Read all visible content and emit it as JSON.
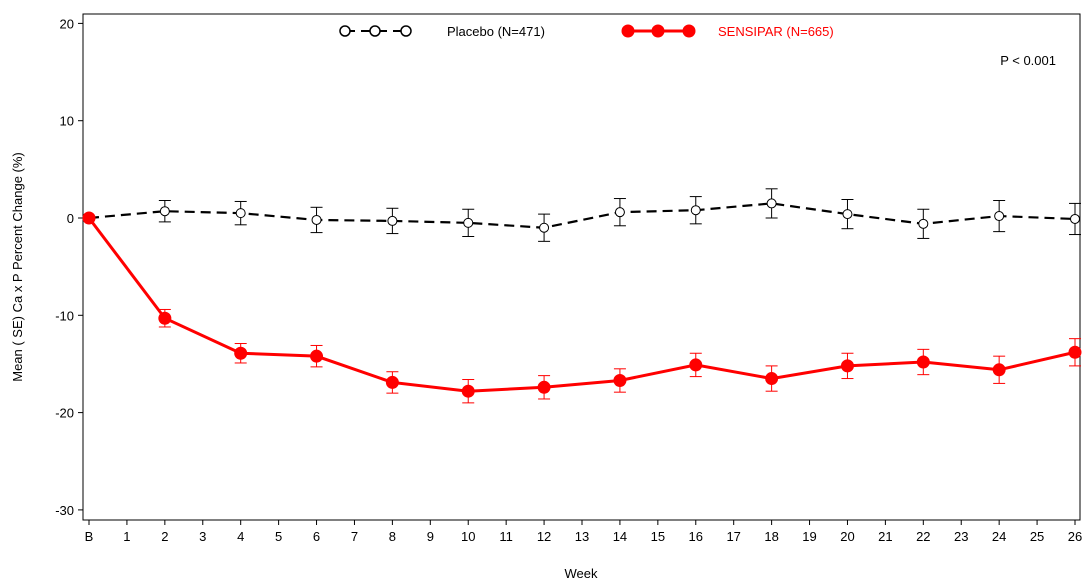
{
  "chart_data": {
    "type": "line",
    "xlabel": "Week",
    "ylabel": "Mean ( SE) Ca x P Percent Change (%)",
    "ylim": [
      -31,
      21
    ],
    "y_ticks": [
      20,
      10,
      0,
      -10,
      -20,
      -30
    ],
    "x_ticks": [
      "B",
      "1",
      "2",
      "3",
      "4",
      "5",
      "6",
      "7",
      "8",
      "9",
      "10",
      "11",
      "12",
      "13",
      "14",
      "15",
      "16",
      "17",
      "18",
      "19",
      "20",
      "21",
      "22",
      "23",
      "24",
      "25",
      "26"
    ],
    "annotation": "P < 0.001",
    "legend_position": "top-center",
    "series": [
      {
        "name": "Placebo (N=471)",
        "color": "#000000",
        "marker": "open-circle",
        "line_style": "dashed",
        "x": [
          0,
          2,
          4,
          6,
          8,
          10,
          12,
          14,
          16,
          18,
          20,
          22,
          24,
          26
        ],
        "values": [
          0,
          0.7,
          0.5,
          -0.2,
          -0.3,
          -0.5,
          -1.0,
          0.6,
          0.8,
          1.5,
          0.4,
          -0.6,
          0.2,
          -0.1
        ],
        "se": [
          0,
          1.1,
          1.2,
          1.3,
          1.3,
          1.4,
          1.4,
          1.4,
          1.4,
          1.5,
          1.5,
          1.5,
          1.6,
          1.6
        ]
      },
      {
        "name": "SENSIPAR (N=665)",
        "color": "#ff0000",
        "marker": "filled-circle",
        "line_style": "solid",
        "x": [
          0,
          2,
          4,
          6,
          8,
          10,
          12,
          14,
          16,
          18,
          20,
          22,
          24,
          26
        ],
        "values": [
          0,
          -10.3,
          -13.9,
          -14.2,
          -16.9,
          -17.8,
          -17.4,
          -16.7,
          -15.1,
          -16.5,
          -15.2,
          -14.8,
          -15.6,
          -13.8
        ],
        "se": [
          0,
          0.9,
          1.0,
          1.1,
          1.1,
          1.2,
          1.2,
          1.2,
          1.2,
          1.3,
          1.3,
          1.3,
          1.4,
          1.4
        ]
      }
    ]
  }
}
